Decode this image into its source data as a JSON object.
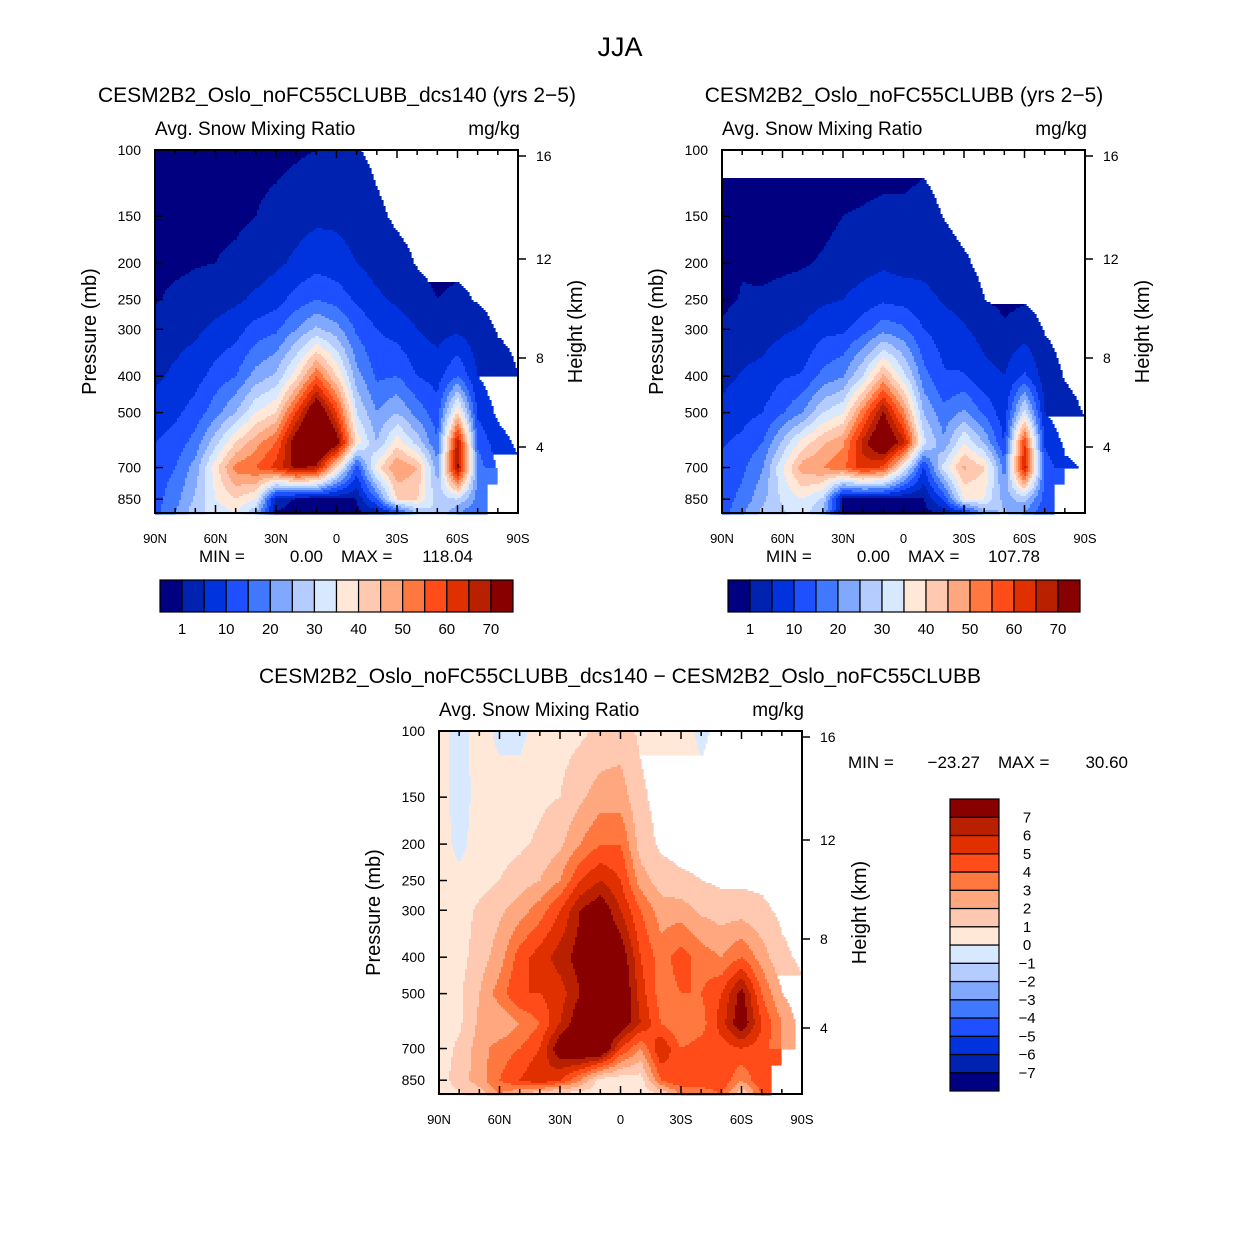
{
  "figure_title": "JJA",
  "chart_data": [
    {
      "type": "heatmap",
      "title": "CESM2B2_Oslo_noFC55CLUBB_dcs140 (yrs 2−5)",
      "subtitle_left": "Avg. Snow Mixing Ratio",
      "subtitle_right": "mg/kg",
      "ylabel": "Pressure (mb)",
      "ylabel_right": "Height (km)",
      "xlim": [
        90,
        -90
      ],
      "ylim": [
        100,
        925
      ],
      "x_ticks": [
        "90N",
        "60N",
        "30N",
        "0",
        "30S",
        "60S",
        "90S"
      ],
      "y_ticks": [
        "100",
        "150",
        "200",
        "250",
        "300",
        "400",
        "500",
        "700",
        "850"
      ],
      "y_tick_values": [
        100,
        150,
        200,
        250,
        300,
        400,
        500,
        700,
        850
      ],
      "y_right_ticks": [
        "16",
        "12",
        "8",
        "4"
      ],
      "min_label": "MIN =",
      "min": "0.00",
      "max_label": "MAX =",
      "max": "118.04",
      "latitudes": [
        90,
        80,
        70,
        60,
        50,
        40,
        30,
        20,
        10,
        0,
        -10,
        -20,
        -30,
        -40,
        -50,
        -60,
        -70,
        -80,
        -90
      ],
      "pressure_levels": [
        100,
        150,
        200,
        250,
        300,
        400,
        500,
        600,
        700,
        850,
        925
      ],
      "values": [
        [
          0,
          0,
          0.3,
          0.8,
          2,
          4,
          7,
          10,
          12,
          13,
          13
        ],
        [
          0,
          0,
          0.5,
          1.5,
          3,
          6,
          9,
          12,
          15,
          18,
          20
        ],
        [
          0,
          0.3,
          0.8,
          2,
          4,
          8,
          12,
          17,
          22,
          26,
          28
        ],
        [
          0,
          0.5,
          1,
          3,
          6,
          12,
          18,
          28,
          38,
          35,
          32
        ],
        [
          0,
          0.5,
          1.5,
          4,
          8,
          15,
          25,
          40,
          52,
          40,
          35
        ],
        [
          0,
          1,
          2.5,
          6,
          12,
          22,
          35,
          48,
          55,
          35,
          25
        ],
        [
          0,
          2,
          4,
          8,
          14,
          26,
          40,
          55,
          62,
          3,
          0.5
        ],
        [
          0.5,
          3,
          6,
          12,
          20,
          38,
          60,
          75,
          72,
          0.5,
          0
        ],
        [
          1,
          4,
          8,
          15,
          26,
          55,
          80,
          90,
          68,
          0,
          0
        ],
        [
          1.5,
          4,
          7,
          13,
          22,
          40,
          60,
          75,
          40,
          0,
          0
        ],
        [
          1.2,
          3,
          5,
          9,
          14,
          22,
          30,
          38,
          12,
          1,
          0
        ],
        [
          0.3,
          1.5,
          3,
          6,
          10,
          14,
          20,
          25,
          38,
          15,
          2
        ],
        [
          0,
          0.5,
          2,
          4,
          8,
          15,
          25,
          38,
          50,
          40,
          10
        ],
        [
          0,
          0,
          0.8,
          2,
          5,
          10,
          18,
          28,
          45,
          40,
          25
        ],
        [
          0,
          0,
          0.3,
          1,
          3,
          8,
          12,
          15,
          22,
          28,
          30
        ],
        [
          0,
          0,
          0.5,
          1.5,
          4,
          15,
          40,
          68,
          72,
          30,
          20
        ],
        [
          0,
          0,
          0.3,
          0.8,
          2,
          5,
          9,
          14,
          18,
          18,
          15
        ],
        [
          0,
          0,
          0,
          0.3,
          0.8,
          2,
          4,
          7,
          9,
          null,
          null
        ],
        [
          0,
          0,
          0,
          0.2,
          0.5,
          1,
          2,
          4,
          6,
          null,
          null
        ]
      ],
      "levels": [
        1,
        5,
        10,
        15,
        20,
        25,
        30,
        35,
        40,
        45,
        50,
        55,
        60,
        65,
        70
      ],
      "colorbar_labels": [
        "1",
        "10",
        "20",
        "30",
        "40",
        "50",
        "60",
        "70"
      ],
      "colors": [
        "#000080",
        "#0022b0",
        "#0033dd",
        "#1e50ff",
        "#4078ff",
        "#80a8ff",
        "#b4ccff",
        "#d8e8ff",
        "#ffe8d8",
        "#ffc8b0",
        "#ffa880",
        "#ff7840",
        "#ff4c18",
        "#e03000",
        "#b82000",
        "#880000"
      ]
    },
    {
      "type": "heatmap",
      "title": "CESM2B2_Oslo_noFC55CLUBB (yrs 2−5)",
      "subtitle_left": "Avg. Snow Mixing Ratio",
      "subtitle_right": "mg/kg",
      "ylabel": "Pressure (mb)",
      "ylabel_right": "Height (km)",
      "xlim": [
        90,
        -90
      ],
      "ylim": [
        100,
        925
      ],
      "x_ticks": [
        "90N",
        "60N",
        "30N",
        "0",
        "30S",
        "60S",
        "90S"
      ],
      "y_ticks": [
        "100",
        "150",
        "200",
        "250",
        "300",
        "400",
        "500",
        "700",
        "850"
      ],
      "y_tick_values": [
        100,
        150,
        200,
        250,
        300,
        400,
        500,
        700,
        850
      ],
      "y_right_ticks": [
        "16",
        "12",
        "8",
        "4"
      ],
      "min_label": "MIN =",
      "min": "0.00",
      "max_label": "MAX =",
      "max": "107.78",
      "latitudes": [
        90,
        80,
        70,
        60,
        50,
        40,
        30,
        20,
        10,
        0,
        -10,
        -20,
        -30,
        -40,
        -50,
        -60,
        -70,
        -80,
        -90
      ],
      "pressure_levels": [
        100,
        150,
        200,
        250,
        300,
        400,
        500,
        600,
        700,
        850,
        925
      ],
      "values": [
        [
          0,
          0,
          0,
          0.3,
          1.5,
          3.5,
          6.5,
          9.5,
          11.5,
          12.5,
          12.5
        ],
        [
          0.5,
          0.5,
          0.8,
          1.2,
          2.5,
          5.4,
          8.2,
          11.2,
          13.8,
          16.5,
          19.2
        ],
        [
          0,
          0,
          0.3,
          1.4,
          2.8,
          6.5,
          10,
          14.8,
          19.5,
          23.5,
          26.5
        ],
        [
          0.3,
          0,
          0.4,
          2,
          4.2,
          9.5,
          14.5,
          26,
          34.5,
          31,
          29
        ],
        [
          0.3,
          0,
          0.7,
          2.5,
          5.5,
          10.5,
          20,
          37,
          48,
          35,
          33
        ],
        [
          0,
          0.2,
          1.3,
          4,
          8.5,
          16.5,
          30,
          44,
          50,
          29,
          24
        ],
        [
          0,
          1,
          2.2,
          5,
          9,
          19.5,
          34.5,
          49,
          54,
          0,
          0
        ],
        [
          0,
          1.2,
          3,
          7,
          13,
          30.5,
          53,
          67,
          63,
          0,
          0
        ],
        [
          0,
          1.5,
          4,
          9,
          18,
          46,
          71,
          81,
          59,
          0,
          0
        ],
        [
          0,
          1.5,
          3,
          8,
          16,
          32,
          51.5,
          67,
          35,
          0,
          0
        ],
        [
          0.4,
          1.8,
          3.5,
          6.5,
          10,
          17,
          24.5,
          32,
          9,
          0.5,
          0
        ],
        [
          0,
          0.9,
          2.2,
          4.5,
          7.5,
          10.5,
          16.5,
          21,
          32,
          11,
          1
        ],
        [
          0,
          0,
          1.4,
          2.8,
          5.5,
          10.5,
          21,
          35,
          46,
          35,
          7
        ],
        [
          0.3,
          0,
          0.2,
          1,
          3.2,
          6.5,
          14,
          24.5,
          40.5,
          35,
          22
        ],
        [
          0,
          0,
          0,
          0.2,
          1.5,
          5,
          7,
          9.5,
          17.5,
          23,
          26
        ],
        [
          0,
          0,
          0,
          0.7,
          2.5,
          11,
          32.5,
          60,
          67,
          27,
          19
        ],
        [
          0,
          0,
          0,
          0,
          0.8,
          2.5,
          5,
          9,
          13.5,
          13,
          11
        ],
        [
          0,
          0,
          0,
          0,
          0,
          0.8,
          2,
          4,
          6,
          null,
          null
        ],
        [
          0,
          0,
          0,
          0,
          0,
          0.2,
          0.8,
          2.5,
          4.5,
          null,
          null
        ]
      ],
      "levels": [
        1,
        5,
        10,
        15,
        20,
        25,
        30,
        35,
        40,
        45,
        50,
        55,
        60,
        65,
        70
      ],
      "colorbar_labels": [
        "1",
        "10",
        "20",
        "30",
        "40",
        "50",
        "60",
        "70"
      ],
      "colors": [
        "#000080",
        "#0022b0",
        "#0033dd",
        "#1e50ff",
        "#4078ff",
        "#80a8ff",
        "#b4ccff",
        "#d8e8ff",
        "#ffe8d8",
        "#ffc8b0",
        "#ffa880",
        "#ff7840",
        "#ff4c18",
        "#e03000",
        "#b82000",
        "#880000"
      ]
    },
    {
      "type": "heatmap",
      "title": "CESM2B2_Oslo_noFC55CLUBB_dcs140 − CESM2B2_Oslo_noFC55CLUBB",
      "subtitle_left": "Avg. Snow Mixing Ratio",
      "subtitle_right": "mg/kg",
      "ylabel": "Pressure (mb)",
      "ylabel_right": "Height (km)",
      "xlim": [
        90,
        -90
      ],
      "ylim": [
        100,
        925
      ],
      "x_ticks": [
        "90N",
        "60N",
        "30N",
        "0",
        "30S",
        "60S",
        "90S"
      ],
      "y_ticks": [
        "100",
        "150",
        "200",
        "250",
        "300",
        "400",
        "500",
        "700",
        "850"
      ],
      "y_tick_values": [
        100,
        150,
        200,
        250,
        300,
        400,
        500,
        700,
        850
      ],
      "y_right_ticks": [
        "16",
        "12",
        "8",
        "4"
      ],
      "min_label": "MIN =",
      "min": "−23.27",
      "max_label": "MAX =",
      "max": "30.60",
      "latitudes": [
        90,
        80,
        70,
        60,
        50,
        40,
        30,
        20,
        10,
        0,
        -10,
        -20,
        -30,
        -40,
        -50,
        -60,
        -70,
        -80,
        -90
      ],
      "pressure_levels": [
        100,
        150,
        200,
        250,
        300,
        400,
        500,
        600,
        700,
        850,
        925
      ],
      "values": [
        [
          0.5,
          0.5,
          0.5,
          0.5,
          0.5,
          0.5,
          0.5,
          0.5,
          0.5,
          0.5,
          0.5
        ],
        [
          -0.5,
          -0.5,
          -0.3,
          0.3,
          0.5,
          0.6,
          0.8,
          0.8,
          1.2,
          1.5,
          0.8
        ],
        [
          0.5,
          0.4,
          0.5,
          0.6,
          1.2,
          1.5,
          2,
          2.2,
          2.5,
          2.5,
          1.5
        ],
        [
          -0.3,
          0.5,
          0.6,
          1,
          1.8,
          2.5,
          3.5,
          2,
          3.5,
          4,
          3
        ],
        [
          -0.3,
          0.5,
          0.8,
          1.5,
          2.5,
          4.5,
          5,
          3,
          4,
          5,
          2
        ],
        [
          0.5,
          0.8,
          1.2,
          2,
          3.5,
          5.5,
          5,
          4,
          5,
          6,
          1
        ],
        [
          0.6,
          1,
          1.8,
          3,
          5,
          6.5,
          5.5,
          6,
          8,
          5,
          0.5
        ],
        [
          0.8,
          1.8,
          3,
          5,
          7,
          7.5,
          7,
          8,
          9,
          3,
          0.5
        ],
        [
          1.2,
          2.5,
          4,
          6,
          8,
          9,
          9,
          9,
          9,
          0.5,
          0.3
        ],
        [
          1.5,
          2.5,
          4,
          5,
          6,
          8,
          8.5,
          8,
          5,
          0.3,
          0.3
        ],
        [
          0.8,
          1.2,
          1.5,
          2.5,
          4,
          5,
          5.5,
          6,
          3,
          0.5,
          0.3
        ],
        [
          0.5,
          0.6,
          0.8,
          1.5,
          2.5,
          3.5,
          3.5,
          4,
          6,
          4,
          1
        ],
        [
          0.5,
          0.5,
          0.6,
          1.2,
          2.5,
          4.5,
          4,
          3,
          4,
          5,
          3
        ],
        [
          -0.3,
          0.5,
          0.6,
          1,
          1.8,
          3.5,
          4,
          3.5,
          4.5,
          5,
          3
        ],
        [
          0.5,
          0.5,
          0.6,
          0.8,
          1.5,
          3,
          5,
          5.5,
          4.5,
          5,
          4
        ],
        [
          0.5,
          0.5,
          0.6,
          0.8,
          1.5,
          4,
          7.5,
          8,
          5,
          3,
          1
        ],
        [
          0.5,
          0.5,
          0.7,
          0.8,
          1.2,
          2.5,
          4,
          5,
          4.5,
          5,
          4
        ],
        [
          0.5,
          0.5,
          0.5,
          0.6,
          0.8,
          1.2,
          2,
          3,
          3,
          null,
          null
        ],
        [
          0.5,
          0.5,
          0.5,
          0.5,
          0.6,
          0.8,
          1.2,
          1.5,
          1.5,
          null,
          null
        ]
      ],
      "levels": [
        -7,
        -6,
        -5,
        -4,
        -3,
        -2,
        -1,
        0,
        1,
        2,
        3,
        4,
        5,
        6,
        7
      ],
      "colorbar_labels": [
        "−7",
        "−6",
        "−5",
        "−4",
        "−3",
        "−2",
        "−1",
        "0",
        "1",
        "2",
        "3",
        "4",
        "5",
        "6",
        "7"
      ],
      "colors": [
        "#000080",
        "#0022b0",
        "#0033dd",
        "#1e50ff",
        "#4078ff",
        "#80a8ff",
        "#b4ccff",
        "#d8e8ff",
        "#ffe8d8",
        "#ffc8b0",
        "#ffa880",
        "#ff7840",
        "#ff4c18",
        "#e03000",
        "#b82000",
        "#880000"
      ]
    }
  ]
}
